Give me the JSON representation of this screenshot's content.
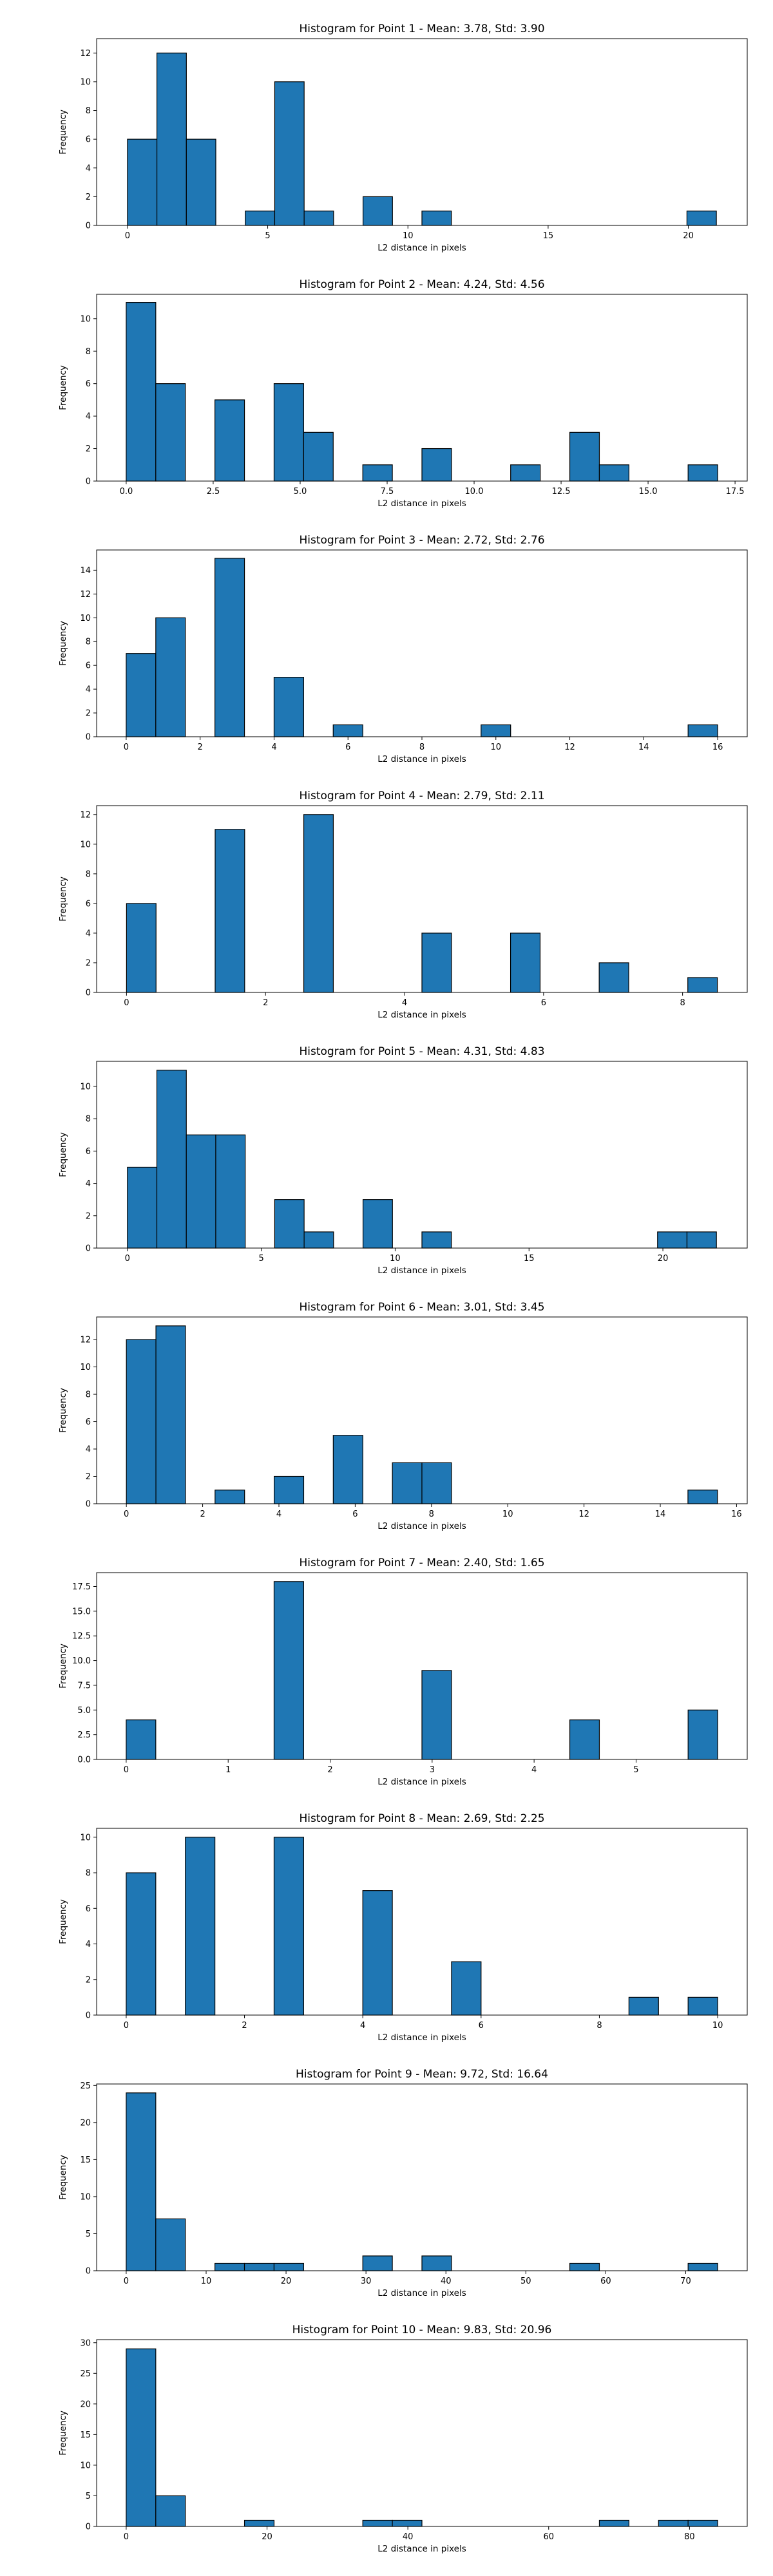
{
  "figure": {
    "background": "#ffffff",
    "bar_color": "#1f77b4",
    "edge_color": "#000000"
  },
  "chart_data": [
    {
      "type": "bar",
      "variant": "histogram",
      "title": "Histogram for Point 1 - Mean: 3.78, Std: 3.90",
      "xlabel": "L2 distance in pixels",
      "ylabel": "Frequency",
      "xlim": [
        -1.1,
        22.1
      ],
      "ylim": [
        0,
        13
      ],
      "xticks": [
        0,
        5,
        10,
        15,
        20
      ],
      "xtick_labels": [
        "0",
        "5",
        "10",
        "15",
        "20"
      ],
      "yticks": [
        0,
        2,
        4,
        6,
        8,
        10,
        12
      ],
      "ytick_labels": [
        "0",
        "2",
        "4",
        "6",
        "8",
        "10",
        "12"
      ],
      "bins": [
        0,
        1.05,
        2.1,
        3.15,
        4.2,
        5.25,
        6.3,
        7.35,
        8.4,
        9.45,
        10.5,
        11.55,
        12.6,
        13.65,
        14.7,
        15.75,
        16.8,
        17.85,
        18.9,
        19.95,
        21.0
      ],
      "counts": [
        6,
        12,
        6,
        0,
        1,
        10,
        1,
        0,
        2,
        0,
        1,
        0,
        0,
        0,
        0,
        0,
        0,
        0,
        0,
        1
      ],
      "grid": false,
      "legend": "none"
    },
    {
      "type": "bar",
      "variant": "histogram",
      "title": "Histogram for Point 2 - Mean: 4.24, Std: 4.56",
      "xlabel": "L2 distance in pixels",
      "ylabel": "Frequency",
      "xlim": [
        -0.85,
        17.85
      ],
      "ylim": [
        0,
        11.5
      ],
      "xticks": [
        0,
        2.5,
        5,
        7.5,
        10,
        12.5,
        15,
        17.5
      ],
      "xtick_labels": [
        "0.0",
        "2.5",
        "5.0",
        "7.5",
        "10.0",
        "12.5",
        "15.0",
        "17.5"
      ],
      "yticks": [
        0,
        2,
        4,
        6,
        8,
        10
      ],
      "ytick_labels": [
        "0",
        "2",
        "4",
        "6",
        "8",
        "10"
      ],
      "bins": [
        0,
        0.85,
        1.7,
        2.55,
        3.4,
        4.25,
        5.1,
        5.95,
        6.8,
        7.65,
        8.5,
        9.35,
        10.2,
        11.05,
        11.9,
        12.75,
        13.6,
        14.45,
        15.3,
        16.15,
        17.0
      ],
      "counts": [
        11,
        6,
        0,
        5,
        0,
        6,
        3,
        0,
        1,
        0,
        2,
        0,
        0,
        1,
        0,
        3,
        1,
        0,
        0,
        1
      ],
      "grid": false,
      "legend": "none"
    },
    {
      "type": "bar",
      "variant": "histogram",
      "title": "Histogram for Point 3 - Mean: 2.72, Std: 2.76",
      "xlabel": "L2 distance in pixels",
      "ylabel": "Frequency",
      "xlim": [
        -0.8,
        16.8
      ],
      "ylim": [
        0,
        15.7
      ],
      "xticks": [
        0,
        2,
        4,
        6,
        8,
        10,
        12,
        14,
        16
      ],
      "xtick_labels": [
        "0",
        "2",
        "4",
        "6",
        "8",
        "10",
        "12",
        "14",
        "16"
      ],
      "yticks": [
        0,
        2,
        4,
        6,
        8,
        10,
        12,
        14
      ],
      "ytick_labels": [
        "0",
        "2",
        "4",
        "6",
        "8",
        "10",
        "12",
        "14"
      ],
      "bins": [
        0,
        0.8,
        1.6,
        2.4,
        3.2,
        4.0,
        4.8,
        5.6,
        6.4,
        7.2,
        8.0,
        8.8,
        9.6,
        10.4,
        11.2,
        12.0,
        12.8,
        13.6,
        14.4,
        15.2,
        16.0
      ],
      "counts": [
        7,
        10,
        0,
        15,
        0,
        5,
        0,
        1,
        0,
        0,
        0,
        0,
        1,
        0,
        0,
        0,
        0,
        0,
        0,
        1
      ],
      "grid": false,
      "legend": "none"
    },
    {
      "type": "bar",
      "variant": "histogram",
      "title": "Histogram for Point 4 - Mean: 2.79, Std: 2.11",
      "xlabel": "L2 distance in pixels",
      "ylabel": "Frequency",
      "xlim": [
        -0.43,
        8.93
      ],
      "ylim": [
        0,
        12.6
      ],
      "xticks": [
        0,
        2,
        4,
        6,
        8
      ],
      "xtick_labels": [
        "0",
        "2",
        "4",
        "6",
        "8"
      ],
      "yticks": [
        0,
        2,
        4,
        6,
        8,
        10,
        12
      ],
      "ytick_labels": [
        "0",
        "2",
        "4",
        "6",
        "8",
        "10",
        "12"
      ],
      "bins": [
        0,
        0.425,
        0.85,
        1.275,
        1.7,
        2.125,
        2.55,
        2.975,
        3.4,
        3.825,
        4.25,
        4.675,
        5.1,
        5.525,
        5.95,
        6.375,
        6.8,
        7.225,
        7.65,
        8.075,
        8.5
      ],
      "counts": [
        6,
        0,
        0,
        11,
        0,
        0,
        12,
        0,
        0,
        0,
        4,
        0,
        0,
        4,
        0,
        0,
        2,
        0,
        0,
        1
      ],
      "grid": false,
      "legend": "none"
    },
    {
      "type": "bar",
      "variant": "histogram",
      "title": "Histogram for Point 5 - Mean: 4.31, Std: 4.83",
      "xlabel": "L2 distance in pixels",
      "ylabel": "Frequency",
      "xlim": [
        -1.15,
        23.15
      ],
      "ylim": [
        0,
        11.55
      ],
      "xticks": [
        0,
        5,
        10,
        15,
        20
      ],
      "xtick_labels": [
        "0",
        "5",
        "10",
        "15",
        "20"
      ],
      "yticks": [
        0,
        2,
        4,
        6,
        8,
        10
      ],
      "ytick_labels": [
        "0",
        "2",
        "4",
        "6",
        "8",
        "10"
      ],
      "bins": [
        0,
        1.1,
        2.2,
        3.3,
        4.4,
        5.5,
        6.6,
        7.7,
        8.8,
        9.9,
        11.0,
        12.1,
        13.2,
        14.3,
        15.4,
        16.5,
        17.6,
        18.7,
        19.8,
        20.9,
        22.0
      ],
      "counts": [
        5,
        11,
        7,
        7,
        0,
        3,
        1,
        0,
        3,
        0,
        1,
        0,
        0,
        0,
        0,
        0,
        0,
        0,
        1,
        1
      ],
      "grid": false,
      "legend": "none"
    },
    {
      "type": "bar",
      "variant": "histogram",
      "title": "Histogram for Point 6 - Mean: 3.01, Std: 3.45",
      "xlabel": "L2 distance in pixels",
      "ylabel": "Frequency",
      "xlim": [
        -0.78,
        16.28
      ],
      "ylim": [
        0,
        13.65
      ],
      "xticks": [
        0,
        2,
        4,
        6,
        8,
        10,
        12,
        14,
        16
      ],
      "xtick_labels": [
        "0",
        "2",
        "4",
        "6",
        "8",
        "10",
        "12",
        "14",
        "16"
      ],
      "yticks": [
        0,
        2,
        4,
        6,
        8,
        10,
        12
      ],
      "ytick_labels": [
        "0",
        "2",
        "4",
        "6",
        "8",
        "10",
        "12"
      ],
      "bins": [
        0,
        0.775,
        1.55,
        2.325,
        3.1,
        3.875,
        4.65,
        5.425,
        6.2,
        6.975,
        7.75,
        8.525,
        9.3,
        10.075,
        10.85,
        11.625,
        12.4,
        13.175,
        13.95,
        14.725,
        15.5
      ],
      "counts": [
        12,
        13,
        0,
        1,
        0,
        2,
        0,
        5,
        0,
        3,
        3,
        0,
        0,
        0,
        0,
        0,
        0,
        0,
        0,
        1
      ],
      "grid": false,
      "legend": "none"
    },
    {
      "type": "bar",
      "variant": "histogram",
      "title": "Histogram for Point 7 - Mean: 2.40, Std: 1.65",
      "xlabel": "L2 distance in pixels",
      "ylabel": "Frequency",
      "xlim": [
        -0.29,
        6.09
      ],
      "ylim": [
        0,
        18.9
      ],
      "xticks": [
        0,
        1,
        2,
        3,
        4,
        5
      ],
      "xtick_labels": [
        "0",
        "1",
        "2",
        "3",
        "4",
        "5"
      ],
      "yticks": [
        0,
        2.5,
        5,
        7.5,
        10,
        12.5,
        15,
        17.5
      ],
      "ytick_labels": [
        "0.0",
        "2.5",
        "5.0",
        "7.5",
        "10.0",
        "12.5",
        "15.0",
        "17.5"
      ],
      "bins": [
        0,
        0.29,
        0.58,
        0.87,
        1.16,
        1.45,
        1.74,
        2.03,
        2.32,
        2.61,
        2.9,
        3.19,
        3.48,
        3.77,
        4.06,
        4.35,
        4.64,
        4.93,
        5.22,
        5.51,
        5.8
      ],
      "counts": [
        4,
        0,
        0,
        0,
        0,
        18,
        0,
        0,
        0,
        0,
        9,
        0,
        0,
        0,
        0,
        4,
        0,
        0,
        0,
        5
      ],
      "grid": false,
      "legend": "none"
    },
    {
      "type": "bar",
      "variant": "histogram",
      "title": "Histogram for Point 8 - Mean: 2.69, Std: 2.25",
      "xlabel": "L2 distance in pixels",
      "ylabel": "Frequency",
      "xlim": [
        -0.5,
        10.5
      ],
      "ylim": [
        0,
        10.5
      ],
      "xticks": [
        0,
        2,
        4,
        6,
        8,
        10
      ],
      "xtick_labels": [
        "0",
        "2",
        "4",
        "6",
        "8",
        "10"
      ],
      "yticks": [
        0,
        2,
        4,
        6,
        8,
        10
      ],
      "ytick_labels": [
        "0",
        "2",
        "4",
        "6",
        "8",
        "10"
      ],
      "bins": [
        0,
        0.5,
        1.0,
        1.5,
        2.0,
        2.5,
        3.0,
        3.5,
        4.0,
        4.5,
        5.0,
        5.5,
        6.0,
        6.5,
        7.0,
        7.5,
        8.0,
        8.5,
        9.0,
        9.5,
        10.0
      ],
      "counts": [
        8,
        0,
        10,
        0,
        0,
        10,
        0,
        0,
        7,
        0,
        0,
        3,
        0,
        0,
        0,
        0,
        0,
        1,
        0,
        1
      ],
      "grid": false,
      "legend": "none"
    },
    {
      "type": "bar",
      "variant": "histogram",
      "title": "Histogram for Point 9 - Mean: 9.72, Std: 16.64",
      "xlabel": "L2 distance in pixels",
      "ylabel": "Frequency",
      "xlim": [
        -3.7,
        77.7
      ],
      "ylim": [
        0,
        25.2
      ],
      "xticks": [
        0,
        10,
        20,
        30,
        40,
        50,
        60,
        70
      ],
      "xtick_labels": [
        "0",
        "10",
        "20",
        "30",
        "40",
        "50",
        "60",
        "70"
      ],
      "yticks": [
        0,
        5,
        10,
        15,
        20,
        25
      ],
      "ytick_labels": [
        "0",
        "5",
        "10",
        "15",
        "20",
        "25"
      ],
      "bins": [
        0,
        3.7,
        7.4,
        11.1,
        14.8,
        18.5,
        22.2,
        25.9,
        29.6,
        33.3,
        37.0,
        40.7,
        44.4,
        48.1,
        51.8,
        55.5,
        59.2,
        62.9,
        66.6,
        70.3,
        74.0
      ],
      "counts": [
        24,
        7,
        0,
        1,
        1,
        1,
        0,
        0,
        2,
        0,
        2,
        0,
        0,
        0,
        0,
        1,
        0,
        0,
        0,
        1
      ],
      "grid": false,
      "legend": "none"
    },
    {
      "type": "bar",
      "variant": "histogram",
      "title": "Histogram for Point 10 - Mean: 9.83, Std: 20.96",
      "xlabel": "L2 distance in pixels",
      "ylabel": "Frequency",
      "xlim": [
        -4.2,
        88.2
      ],
      "ylim": [
        0,
        30.5
      ],
      "xticks": [
        0,
        20,
        40,
        60,
        80
      ],
      "xtick_labels": [
        "0",
        "20",
        "40",
        "60",
        "80"
      ],
      "yticks": [
        0,
        5,
        10,
        15,
        20,
        25,
        30
      ],
      "ytick_labels": [
        "0",
        "5",
        "10",
        "15",
        "20",
        "25",
        "30"
      ],
      "bins": [
        0,
        4.2,
        8.4,
        12.6,
        16.8,
        21.0,
        25.2,
        29.4,
        33.6,
        37.8,
        42.0,
        46.2,
        50.4,
        54.6,
        58.8,
        63.0,
        67.2,
        71.4,
        75.6,
        79.8,
        84.0
      ],
      "counts": [
        29,
        5,
        0,
        0,
        1,
        0,
        0,
        0,
        1,
        1,
        0,
        0,
        0,
        0,
        0,
        0,
        1,
        0,
        1,
        1
      ],
      "grid": false,
      "legend": "none"
    }
  ]
}
